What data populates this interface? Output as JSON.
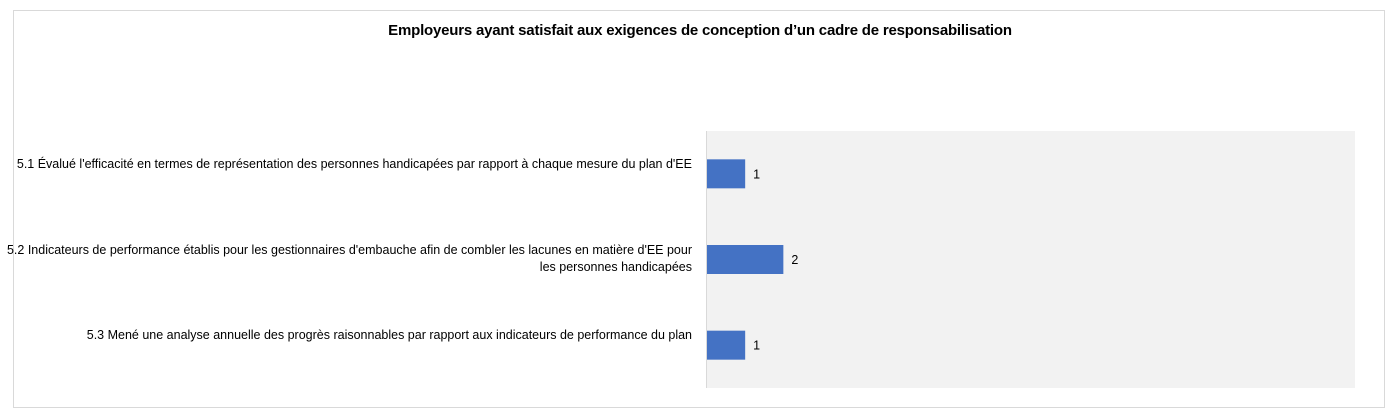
{
  "chart_data": {
    "type": "bar",
    "orientation": "horizontal",
    "title": "Employeurs ayant satisfait aux exigences de conception d’un cadre de responsabilisation",
    "categories": [
      "5.1 Évalué l'efficacité en termes de représentation des personnes handicapées par rapport à chaque mesure du plan d'EE",
      "5.2 Indicateurs de performance établis pour les gestionnaires d'embauche afin de combler les lacunes en matière d'EE pour les personnes handicapées",
      "5.3 Mené une analyse annuelle des progrès raisonnables par rapport aux indicateurs de performance du plan"
    ],
    "values": [
      1,
      2,
      1
    ],
    "data_labels": [
      "1",
      "2",
      "1"
    ],
    "xlim": [
      0,
      17
    ],
    "grid": false,
    "legend": "none",
    "colors": {
      "bar": "#4472C4",
      "plot_area": "#F2F2F2",
      "axis": "#D9D9D9"
    }
  }
}
